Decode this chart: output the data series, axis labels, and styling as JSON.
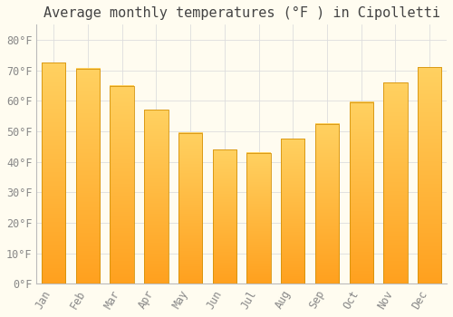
{
  "title": "Average monthly temperatures (°F ) in Cipolletti",
  "months": [
    "Jan",
    "Feb",
    "Mar",
    "Apr",
    "May",
    "Jun",
    "Jul",
    "Aug",
    "Sep",
    "Oct",
    "Nov",
    "Dec"
  ],
  "values": [
    72.5,
    70.5,
    65.0,
    57.0,
    49.5,
    44.0,
    43.0,
    47.5,
    52.5,
    59.5,
    66.0,
    71.0
  ],
  "bar_color_top": "#FFD060",
  "bar_color_bottom": "#FFA020",
  "bar_edge_color": "#D4920A",
  "ylim": [
    0,
    85
  ],
  "yticks": [
    0,
    10,
    20,
    30,
    40,
    50,
    60,
    70,
    80
  ],
  "ytick_labels": [
    "0°F",
    "10°F",
    "20°F",
    "30°F",
    "40°F",
    "50°F",
    "60°F",
    "70°F",
    "80°F"
  ],
  "background_color": "#FFFCF0",
  "grid_color": "#DDDDDD",
  "title_fontsize": 11,
  "tick_fontsize": 8.5,
  "tick_color": "#888888",
  "spine_color": "#BBBBBB",
  "bar_width": 0.7
}
